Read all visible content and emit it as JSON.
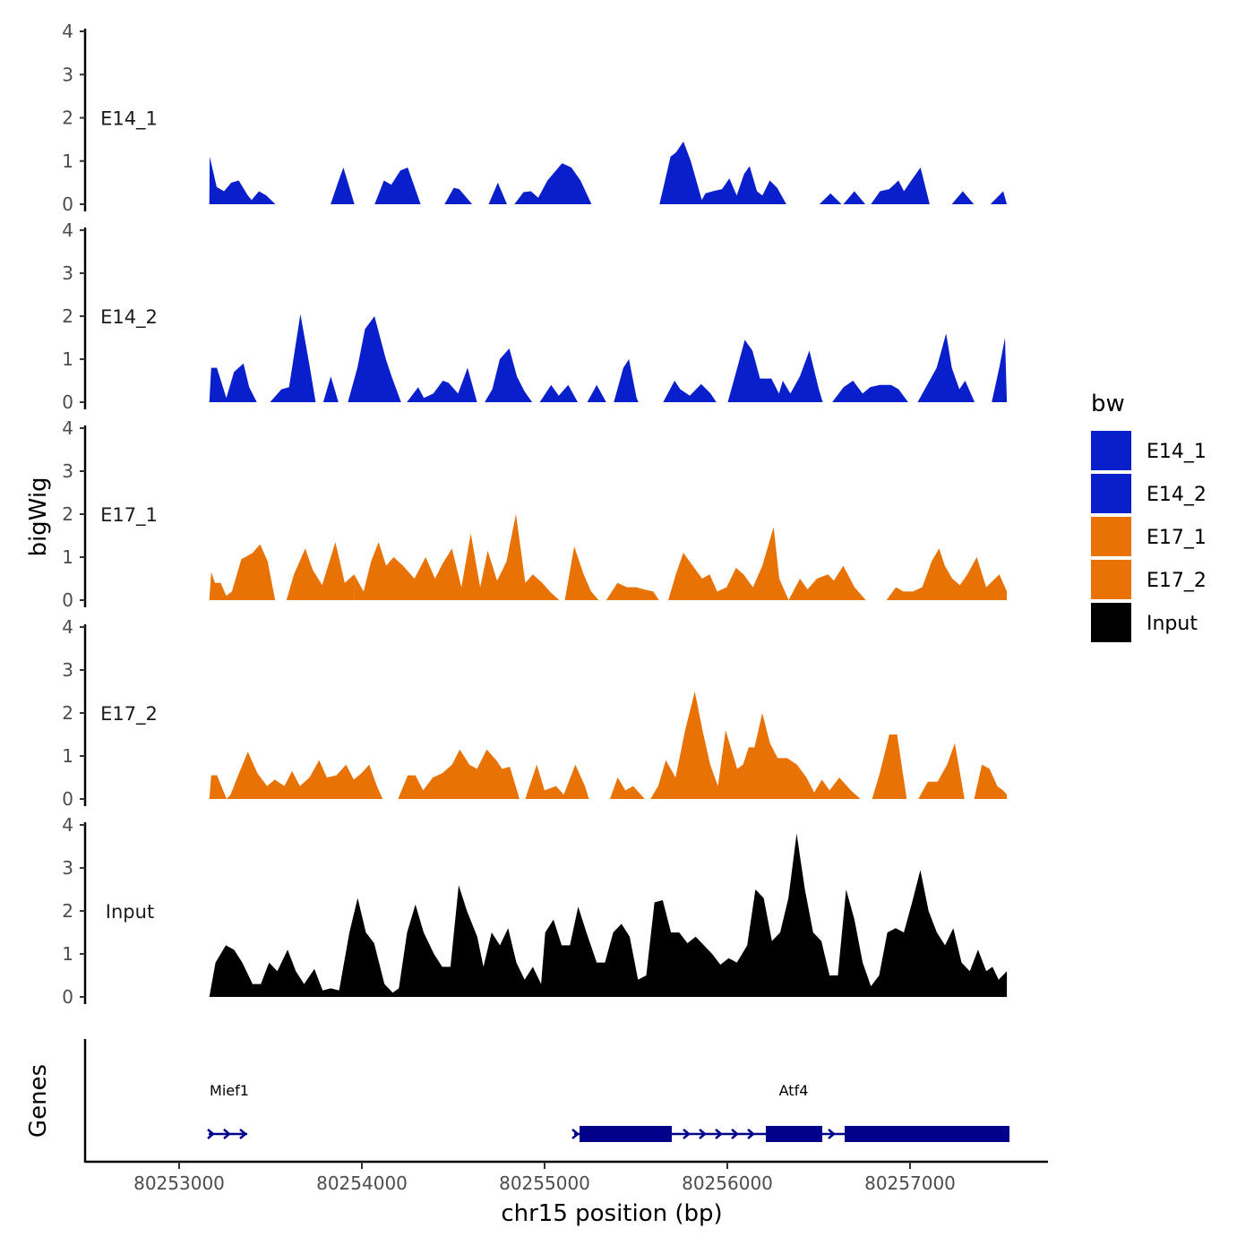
{
  "chart_data": {
    "type": "area",
    "title": "",
    "xlabel": "chr15 position (bp)",
    "ylabel": "bigWig",
    "genes_label": "Genes",
    "x_ticks": [
      80253000,
      80254000,
      80255000,
      80256000,
      80257000
    ],
    "x_tick_labels": [
      "80253000",
      "80254000",
      "80255000",
      "80256000",
      "80257000"
    ],
    "xlim": [
      80252500,
      80257800
    ],
    "ylim": [
      0,
      4
    ],
    "y_ticks": [
      0,
      1,
      2,
      3,
      4
    ],
    "y_tick_labels": [
      "0",
      "1",
      "2",
      "3",
      "4"
    ],
    "legend": {
      "title": "bw",
      "position": "right",
      "items": [
        {
          "name": "E14_1",
          "color": "#0A1FCC"
        },
        {
          "name": "E14_2",
          "color": "#0A1FCC"
        },
        {
          "name": "E17_1",
          "color": "#E87204"
        },
        {
          "name": "E17_2",
          "color": "#E87204"
        },
        {
          "name": "Input",
          "color": "#000000"
        }
      ]
    },
    "series": [
      {
        "name": "E14_1",
        "color": "#0A1FCC",
        "x": [
          80253180,
          80253190,
          80253220,
          80253260,
          80253310,
          80253360,
          80253410,
          80253450,
          80253490,
          80253540,
          80253840,
          80253900,
          80253970,
          80254080,
          80254140,
          80254200,
          80254260,
          80254330,
          80254460,
          80254530,
          80254610,
          80254700,
          80254750,
          80254800,
          80254840,
          80254900,
          80254970,
          80255030,
          80255100,
          80255170,
          80255250,
          80255300,
          80255380,
          80255440,
          80255500,
          80255550,
          80255600,
          80255650,
          80255700,
          80255740,
          80255790,
          80255860,
          80255920,
          80255980,
          80256040,
          80256080,
          80256100,
          80256150,
          80256200,
          80256260,
          80256320,
          80256360,
          80256420,
          80256450,
          80256500,
          80256560,
          80256620,
          80256690,
          80256730,
          80256790,
          80256850,
          80256870,
          80256900,
          80256950,
          80257000,
          80257050,
          80257100,
          80257130,
          80257180,
          80257220,
          80257280,
          80257320,
          80257360,
          80257420,
          80257460,
          80257520,
          80257540
        ]
      }
    ]
  }
}
